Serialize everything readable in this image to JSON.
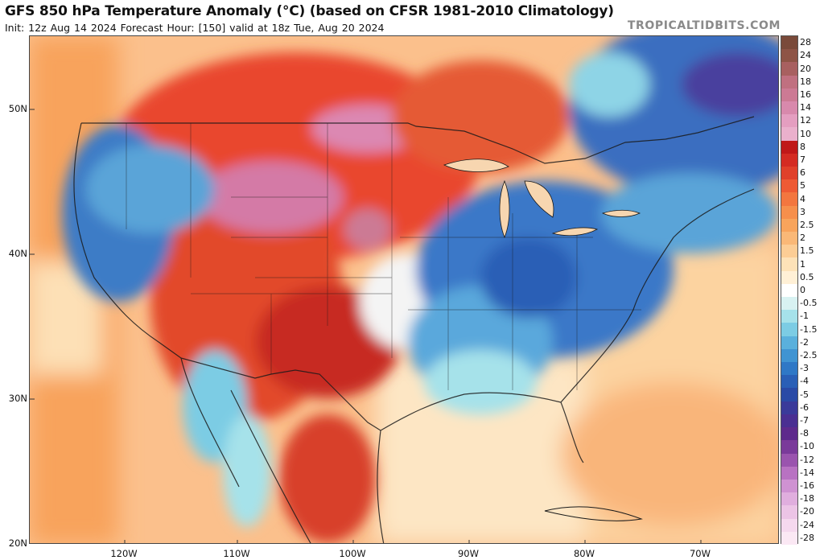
{
  "header": {
    "title": "GFS 850 hPa Temperature Anomaly (°C) (based on CFSR 1981-2010 Climatology)",
    "subtitle": "Init: 12z Aug 14 2024   Forecast Hour: [150]   valid at 18z Tue, Aug 20 2024",
    "credit": "TROPICALTIDBITS.COM"
  },
  "map": {
    "latitude_labels": [
      "50N",
      "40N",
      "30N",
      "20N"
    ],
    "longitude_labels": [
      "120W",
      "110W",
      "100W",
      "90W",
      "80W",
      "70W"
    ]
  },
  "colorbar": {
    "labels": [
      "28",
      "24",
      "20",
      "18",
      "16",
      "14",
      "12",
      "10",
      "8",
      "7",
      "6",
      "5",
      "4",
      "3",
      "2.5",
      "2",
      "1.5",
      "1",
      "0.5",
      "0",
      "-0.5",
      "-1",
      "-1.5",
      "-2",
      "-2.5",
      "-3",
      "-4",
      "-5",
      "-6",
      "-7",
      "-8",
      "-10",
      "-12",
      "-14",
      "-16",
      "-18",
      "-20",
      "-24",
      "-28"
    ],
    "colors": [
      "#7a4a3a",
      "#8e5446",
      "#a86060",
      "#c07080",
      "#cc7a94",
      "#d889ac",
      "#e49ec0",
      "#eab0cc",
      "#c01818",
      "#d42b22",
      "#e0402a",
      "#ee5a34",
      "#f3763f",
      "#f68f4c",
      "#f8a45c",
      "#fab877",
      "#fccd95",
      "#fde2b8",
      "#fff0d6",
      "#ffffff",
      "#d8f2f2",
      "#a6e2ea",
      "#7ccce4",
      "#5ab0dc",
      "#4094d2",
      "#2f78c6",
      "#2a5fb6",
      "#2a4aa6",
      "#3a3a9a",
      "#4a2f92",
      "#5e2a8c",
      "#7a3a9a",
      "#9a54ae",
      "#b872c2",
      "#cf92d2",
      "#e0aede",
      "#ecc4e6",
      "#f5d8ee",
      "#fbe8f4"
    ]
  }
}
